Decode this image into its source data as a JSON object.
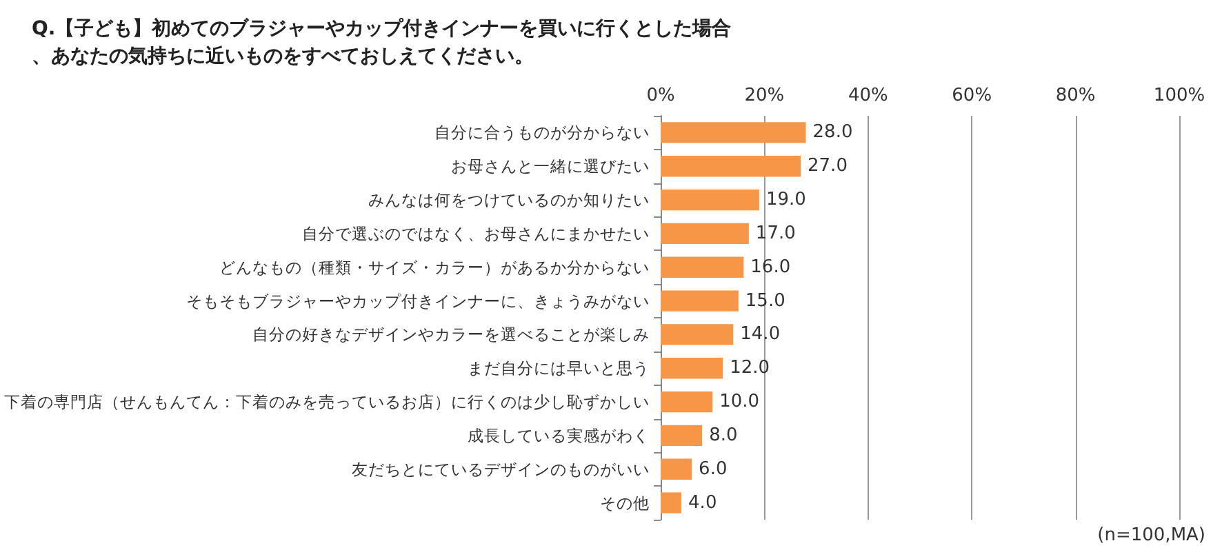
{
  "chart_data": {
    "type": "bar",
    "orientation": "horizontal",
    "title": "Q.【子ども】初めてのブラジャーやカップ付きインナーを買いに行くとした場合、あなたの気持ちに近いものをすべておしえてください。",
    "categories": [
      "自分に合うものが分からない",
      "お母さんと一緒に選びたい",
      "みんなは何をつけているのか知りたい",
      "自分で選ぶのではなく、お母さんにまかせたい",
      "どんなもの（種類・サイズ・カラー）があるか分からない",
      "そもそもブラジャーやカップ付きインナーに、きょうみがない",
      "自分の好きなデザインやカラーを選べることが楽しみ",
      "まだ自分には早いと思う",
      "下着の専門店（せんもんてん：下着のみを売っているお店）に行くのは少し恥ずかしい",
      "成長している実感がわく",
      "友だちとにているデザインのものがいい",
      "その他"
    ],
    "values": [
      28,
      27,
      19,
      17,
      16,
      15,
      14,
      12,
      10,
      8,
      6,
      4
    ],
    "value_labels": [
      "28.0",
      "27.0",
      "19.0",
      "17.0",
      "16.0",
      "15.0",
      "14.0",
      "12.0",
      "10.0",
      "8.0",
      "6.0",
      "4.0"
    ],
    "color": "#f79646",
    "xlim": [
      0,
      100
    ],
    "xticks": [
      {
        "value": 0,
        "label": "0%"
      },
      {
        "value": 20,
        "label": "20%"
      },
      {
        "value": 40,
        "label": "40%"
      },
      {
        "value": 60,
        "label": "60%"
      },
      {
        "value": 80,
        "label": "80%"
      },
      {
        "value": 100,
        "label": "100%"
      }
    ],
    "grid": "x",
    "annotations": [
      "(n=100,MA)"
    ]
  }
}
